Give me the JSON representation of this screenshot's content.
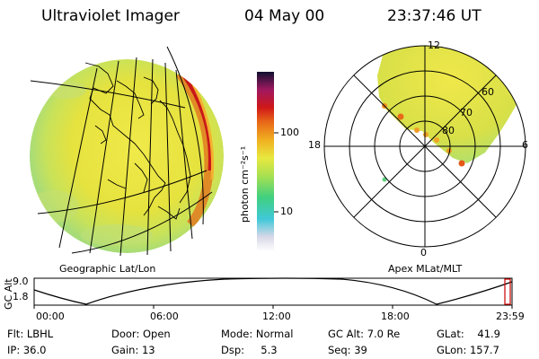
{
  "header": {
    "instrument": "Ultraviolet Imager",
    "date": "04 May 00",
    "time": "23:37:46 UT"
  },
  "geo_panel": {
    "label": "Geographic Lat/Lon"
  },
  "polar_panel": {
    "label": "Apex MLat/MLT",
    "mlt_labels": [
      "12",
      "18",
      "6",
      "0"
    ],
    "lat_labels": [
      "60",
      "70",
      "80"
    ]
  },
  "colorbar": {
    "unit_label": "photon cm⁻²s⁻¹",
    "ticks": [
      "100",
      "10"
    ]
  },
  "orbit": {
    "ylabel": "GC Alt",
    "yticks": [
      "9.0",
      "1.8"
    ],
    "xticks": [
      "00:00",
      "06:00",
      "12:00",
      "18:00",
      "23:59"
    ]
  },
  "info": {
    "filter": "Flt: LBHL",
    "ip": "IP: 36.0",
    "door": "Door: Open",
    "gain": "Gain: 13",
    "mode": "Mode: Normal",
    "dsp": "Dsp:     5.3",
    "gc_alt": "GC Alt: 7.0 Re",
    "seq": "Seq: 39",
    "glat": "GLat:    41.9",
    "glon": "GLon: 157.7"
  },
  "colors": {
    "emission_yellow": "#e8e040",
    "emission_green": "#b8e060",
    "emission_red": "#cc2020",
    "orbit_marker": "#cc0000"
  }
}
